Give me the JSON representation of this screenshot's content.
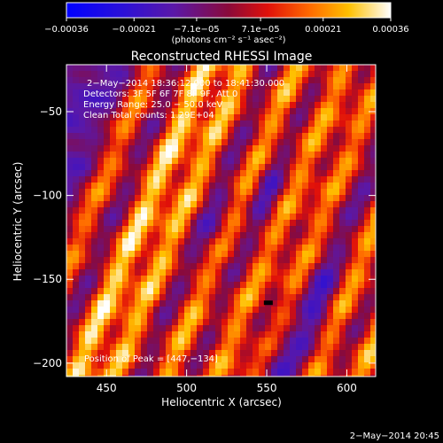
{
  "chart_data": {
    "type": "heatmap",
    "title": "Reconstructed RHESSI Image",
    "xlabel": "Heliocentric X (arcsec)",
    "ylabel": "Heliocentric Y (arcsec)",
    "xlim": [
      425,
      618
    ],
    "ylim": [
      -208,
      -22
    ],
    "x_ticks": [
      {
        "value": 450,
        "label": "450"
      },
      {
        "value": 500,
        "label": "500"
      },
      {
        "value": 550,
        "label": "550"
      },
      {
        "value": 600,
        "label": "600"
      }
    ],
    "y_ticks": [
      {
        "value": -50,
        "label": "−50"
      },
      {
        "value": -100,
        "label": "−100"
      },
      {
        "value": -150,
        "label": "−150"
      },
      {
        "value": -200,
        "label": "−200"
      }
    ],
    "colorbar": {
      "range": [
        -0.00036,
        0.00036
      ],
      "ticks": [
        {
          "value": -0.00036,
          "label": "−0.00036"
        },
        {
          "value": -0.00021,
          "label": "−0.00021"
        },
        {
          "value": -7.1e-05,
          "label": "−7.1e−05"
        },
        {
          "value": 7.1e-05,
          "label": "7.1e−05"
        },
        {
          "value": 0.00021,
          "label": "0.00021"
        },
        {
          "value": 0.00036,
          "label": "0.00036"
        }
      ],
      "units_label": "(photons cm⁻² s⁻¹ asec⁻²)",
      "colormap": "blue-purple-red-orange-yellow-white"
    },
    "annotations": [
      "2−May−2014 18:36:12.000 to 18:41:30.000",
      "Detectors: 3F 5F 6F 7F 8F 9F, Att 0",
      "Energy Range: 25.0 − 50.0 keV",
      "Clean     Total counts: 1.29E+04"
    ],
    "peak_label": "Position of Peak = [447,−134]",
    "peak": {
      "x": 447,
      "y": -134
    },
    "min_marker": {
      "x": 551,
      "y": -164
    },
    "footer_date": "2−May−2014 20:45"
  }
}
